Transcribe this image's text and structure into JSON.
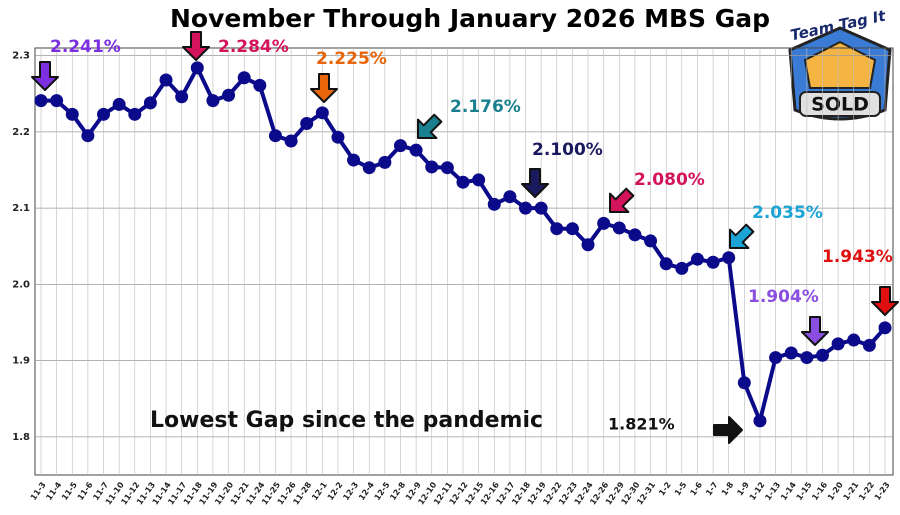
{
  "chart_data": {
    "type": "line",
    "title": "November Through January 2026 MBS Gap",
    "categories": [
      "11-3",
      "11-4",
      "11-5",
      "11-6",
      "11-7",
      "11-10",
      "11-12",
      "11-13",
      "11-14",
      "11-17",
      "11-18",
      "11-19",
      "11-20",
      "11-21",
      "11-24",
      "11-25",
      "11-26",
      "11-28",
      "12-1",
      "12-2",
      "12-3",
      "12-4",
      "12-5",
      "12-8",
      "12-9",
      "12-10",
      "12-11",
      "12-12",
      "12-15",
      "12-16",
      "12-17",
      "12-18",
      "12-19",
      "12-22",
      "12-23",
      "12-24",
      "12-26",
      "12-29",
      "12-30",
      "12-31",
      "1-2",
      "1-5",
      "1-6",
      "1-7",
      "1-8",
      "1-9",
      "1-12",
      "1-13",
      "1-14",
      "1-15",
      "1-16",
      "1-20",
      "1-21",
      "1-22",
      "1-23"
    ],
    "series": [
      {
        "name": "MBS Gap",
        "color": "#0a0a8a",
        "values": [
          2.241,
          2.241,
          2.223,
          2.195,
          2.223,
          2.236,
          2.223,
          2.238,
          2.268,
          2.246,
          2.284,
          2.241,
          2.248,
          2.271,
          2.261,
          2.195,
          2.188,
          2.211,
          2.225,
          2.193,
          2.163,
          2.153,
          2.16,
          2.182,
          2.176,
          2.154,
          2.153,
          2.134,
          2.137,
          2.105,
          2.115,
          2.1,
          2.1,
          2.073,
          2.073,
          2.052,
          2.08,
          2.074,
          2.065,
          2.057,
          2.027,
          2.021,
          2.033,
          2.029,
          2.035,
          1.871,
          1.821,
          1.904,
          1.91,
          1.904,
          1.907,
          1.922,
          1.927,
          1.92,
          1.943
        ]
      }
    ],
    "ylim": [
      1.75,
      2.31
    ],
    "yticks": [
      1.8,
      1.9,
      {
        "value": 2,
        "label": "2.0"
      },
      2.1,
      2.2,
      2.3
    ],
    "grid": true,
    "annotations": [
      {
        "text": "2.241%",
        "color": "#7b2fe0"
      },
      {
        "text": "2.284%",
        "color": "#d4145a"
      },
      {
        "text": "2.225%",
        "color": "#e8650a"
      },
      {
        "text": "2.176%",
        "color": "#1a7f8e"
      },
      {
        "text": "2.100%",
        "color": "#1a1a5e"
      },
      {
        "text": "2.080%",
        "color": "#d4145a"
      },
      {
        "text": "2.035%",
        "color": "#1ba3d6"
      },
      {
        "text": "1.904%",
        "color": "#8a4fe0"
      },
      {
        "text": "1.943%",
        "color": "#e01010"
      },
      {
        "text": "1.821%",
        "color": "#111111"
      },
      {
        "text": "Lowest Gap since the pandemic",
        "color": "#111111"
      }
    ]
  },
  "logo": {
    "name": "Team Tag It",
    "badge": "SOLD"
  }
}
